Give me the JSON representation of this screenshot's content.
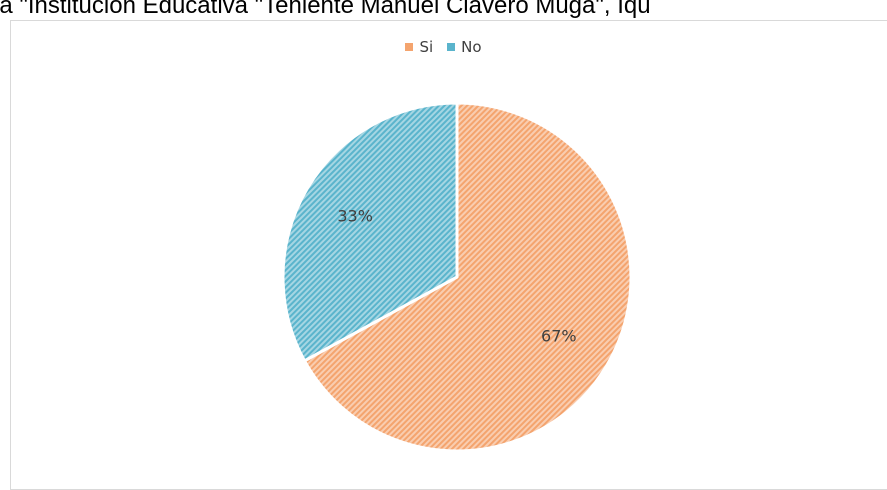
{
  "document": {
    "caption_fragment": "ia \"Institución Educativa \"Teniente Manuel Clavero Muga\", Iqu"
  },
  "chart_data": {
    "type": "pie",
    "categories": [
      "Si",
      "No"
    ],
    "values": [
      67,
      33
    ],
    "data_labels": [
      "67%",
      "33%"
    ],
    "colors": [
      "#f4a46e",
      "#5ab4cc"
    ],
    "pattern": "diagonal-stripes",
    "start_angle_deg": 0,
    "direction": "clockwise",
    "legend_position": "top"
  }
}
